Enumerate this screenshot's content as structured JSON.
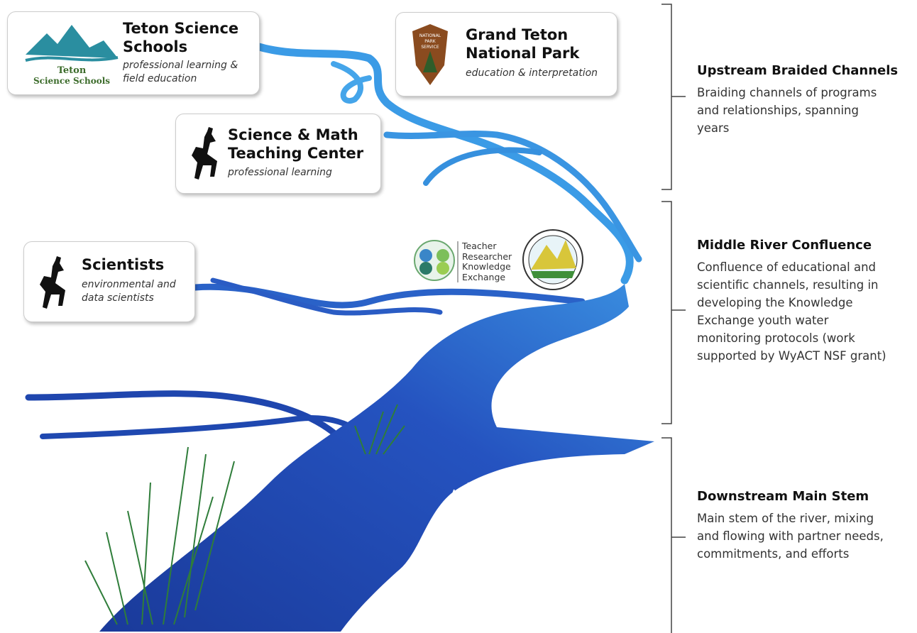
{
  "partners": [
    {
      "name": "Teton Science Schools",
      "role": "professional learning & field education",
      "logo_lines": [
        "Teton",
        "Science Schools"
      ]
    },
    {
      "name": "Grand Teton National Park",
      "role": "education & interpretation",
      "logo_lines": [
        "NATIONAL",
        "PARK",
        "SERVICE"
      ]
    },
    {
      "name": "Science & Math Teaching Center",
      "role": "professional learning"
    },
    {
      "name": "Scientists",
      "role": "environmental and data scientists"
    }
  ],
  "exchange_logo": [
    "Teacher",
    "Researcher",
    "Knowledge",
    "Exchange"
  ],
  "sections": [
    {
      "title": "Upstream Braided Channels",
      "description": "Braiding channels of programs and relationships, spanning years"
    },
    {
      "title": "Middle River Confluence",
      "description": "Confluence of educational and scientific channels, resulting in developing the Knowledge Exchange youth water monitoring protocols (work supported by WyACT NSF grant)"
    },
    {
      "title": "Downstream Main Stem",
      "description": "Main stem of the river, mixing and flowing with partner needs, commitments, and efforts"
    }
  ]
}
